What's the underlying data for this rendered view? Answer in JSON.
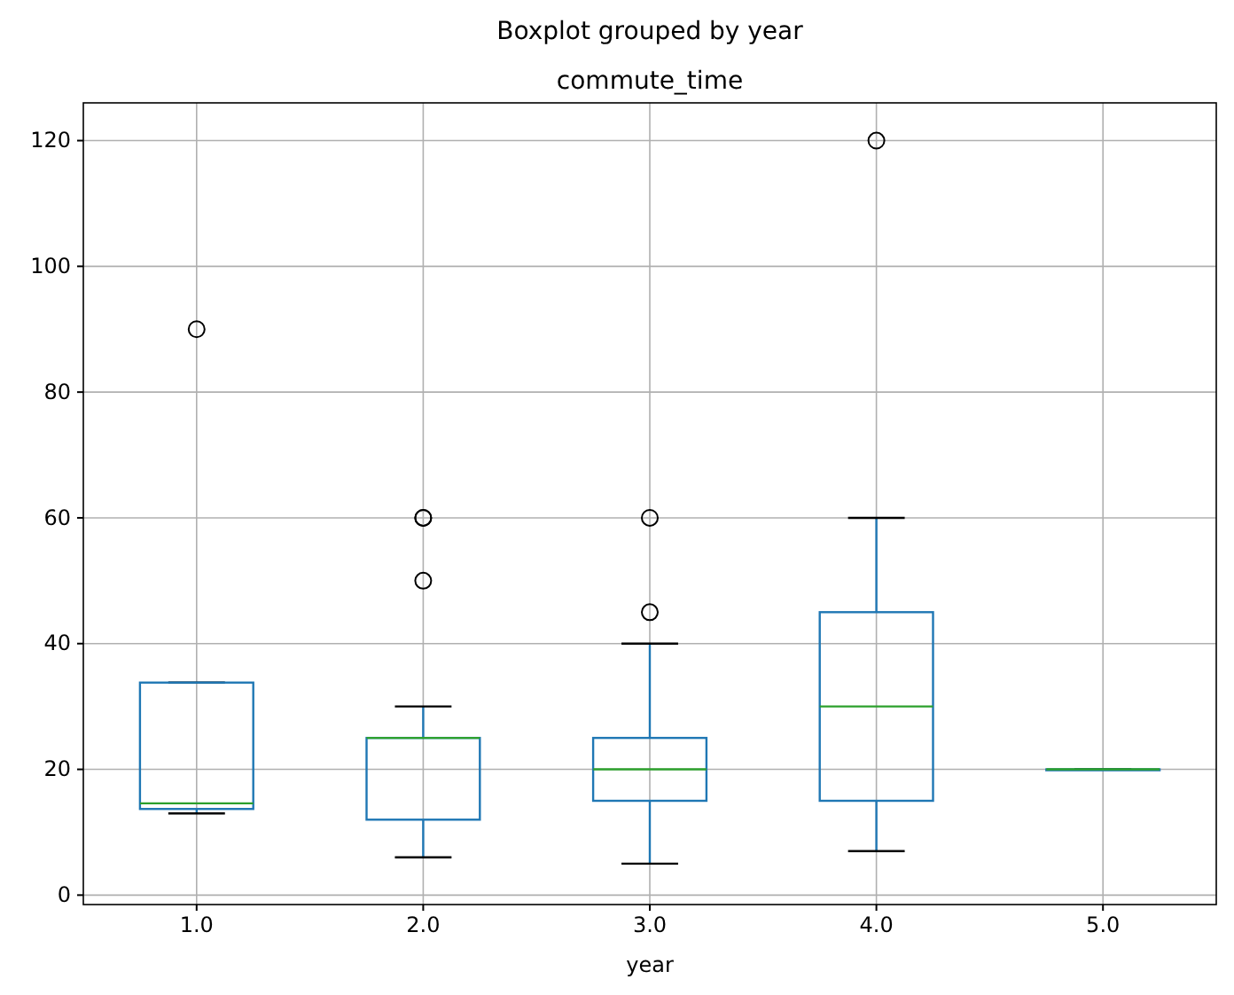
{
  "chart_data": {
    "type": "box",
    "title": "Boxplot grouped by year",
    "subtitle": "commute_time",
    "xlabel": "year",
    "categories": [
      "1.0",
      "2.0",
      "3.0",
      "4.0",
      "5.0"
    ],
    "series": [
      {
        "color": "#1f77b4",
        "boxes": [
          {
            "low": 13,
            "q1": 13.7,
            "median": 14.6,
            "q3": 33.8,
            "high": 33.8,
            "outliers": [
              90
            ]
          },
          {
            "low": 6,
            "q1": 12,
            "median": 25,
            "q3": 25,
            "high": 30,
            "outliers": [
              50,
              60,
              60
            ]
          },
          {
            "low": 5,
            "q1": 15,
            "median": 20,
            "q3": 25,
            "high": 40,
            "outliers": [
              45,
              60
            ]
          },
          {
            "low": 7,
            "q1": 15,
            "median": 30,
            "q3": 45,
            "high": 60,
            "outliers": [
              120
            ]
          },
          {
            "low": 20,
            "q1": 20,
            "median": 20,
            "q3": 20,
            "high": 20
          }
        ]
      }
    ],
    "ylim": [
      -1.5,
      126
    ],
    "yticks": [
      0,
      20,
      40,
      60,
      80,
      100,
      120
    ],
    "grid": true
  }
}
